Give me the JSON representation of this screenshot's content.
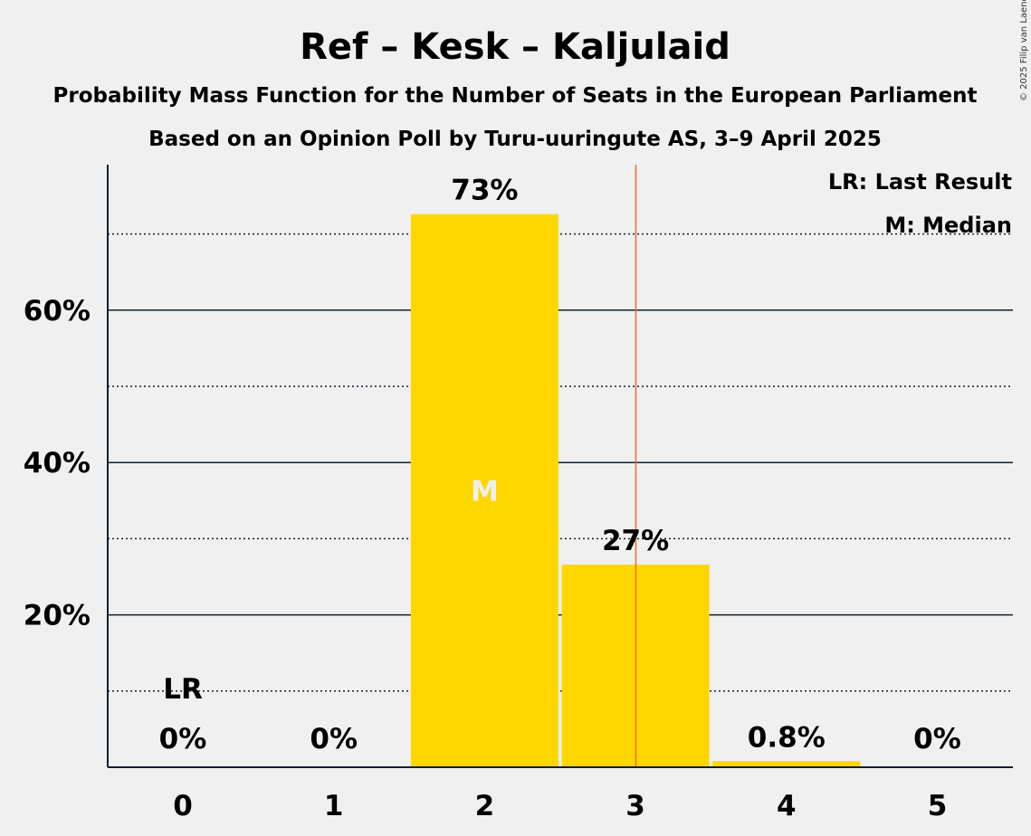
{
  "title": "Ref – Kesk – Kaljulaid",
  "subtitle1": "Probability Mass Function for the Number of Seats in the European Parliament",
  "subtitle2": "Based on an Opinion Poll by Turu-uuringute AS, 3–9 April 2025",
  "copyright": "© 2025 Filip van Laenen",
  "legend": {
    "last_result": "LR: Last Result",
    "median": "M: Median"
  },
  "colors": {
    "bar": "#ffd700",
    "last_result_line": "#e8702a",
    "text": "#0f1f2e",
    "background": "#f0f0f0"
  },
  "chart_data": {
    "type": "bar",
    "categories": [
      "0",
      "1",
      "2",
      "3",
      "4",
      "5"
    ],
    "values": [
      0,
      0,
      72.6,
      26.6,
      0.8,
      0
    ],
    "value_labels": [
      "0%",
      "0%",
      "73%",
      "27%",
      "0.8%",
      "0%"
    ],
    "ylim": [
      0,
      80
    ],
    "y_ticks": [
      "20%",
      "40%",
      "60%"
    ],
    "y_tick_values": [
      20,
      40,
      60
    ],
    "minor_gridlines": [
      10,
      30,
      50,
      70
    ],
    "last_result_seats": 3.5,
    "last_result_label": "LR",
    "last_result_label_category": "0",
    "median_category": "2",
    "median_label": "M",
    "grid": true,
    "legend_placement": "top-right"
  }
}
